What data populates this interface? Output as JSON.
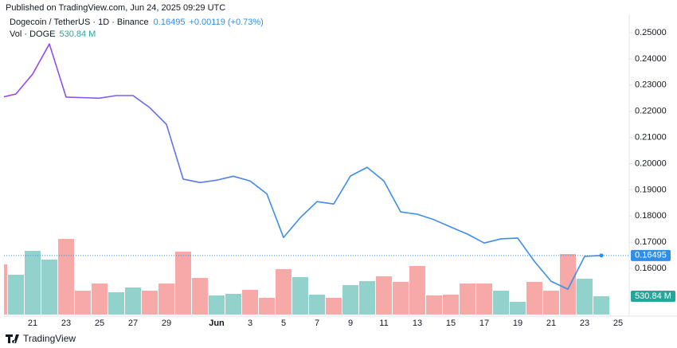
{
  "publisher": "Published on TradingView.com, Jun 24, 2025 09:29 UTC",
  "footer": "TradingView",
  "chart_data": {
    "type": "line",
    "title": "Dogecoin / TetherUS · 1D · Binance",
    "change": "+0.00119 (+0.73%)",
    "volume_title": "Vol · DOGE",
    "categories": [
      null,
      null,
      "21",
      null,
      "23",
      null,
      "25",
      null,
      "27",
      null,
      "29",
      null,
      null,
      "Jun",
      null,
      "3",
      null,
      "5",
      null,
      "7",
      null,
      "9",
      null,
      "11",
      null,
      "13",
      null,
      "15",
      null,
      "17",
      null,
      "19",
      null,
      "21",
      null,
      "23",
      null,
      "25"
    ],
    "ylim": [
      0.1424,
      0.2564
    ],
    "yticks": [
      {
        "value": 0.16,
        "label": "0.16000"
      },
      {
        "value": 0.17,
        "label": "0.17000"
      },
      {
        "value": 0.18,
        "label": "0.18000"
      },
      {
        "value": 0.19,
        "label": "0.19000"
      },
      {
        "value": 0.2,
        "label": "0.20000"
      },
      {
        "value": 0.21,
        "label": "0.21000"
      },
      {
        "value": 0.22,
        "label": "0.22000"
      },
      {
        "value": 0.23,
        "label": "0.23000"
      },
      {
        "value": 0.24,
        "label": "0.24000"
      },
      {
        "value": 0.25,
        "label": "0.25000"
      }
    ],
    "y2lim": [
      0,
      8655
    ],
    "grid": false,
    "series": [
      {
        "type": "line",
        "color_start": "#a23ee6",
        "color_end": "#3d8ee8",
        "last_color": "#2f8fe8",
        "values": [
          0.2251,
          0.2266,
          0.2342,
          0.2457,
          0.2254,
          0.2252,
          0.225,
          0.226,
          0.226,
          0.2214,
          0.215,
          0.1941,
          0.1928,
          0.1937,
          0.1952,
          0.1934,
          0.1885,
          0.1718,
          0.1794,
          0.1855,
          0.1846,
          0.1953,
          0.1986,
          0.1934,
          0.1816,
          0.1807,
          0.1786,
          0.1758,
          0.1731,
          0.1697,
          0.1713,
          0.1716,
          0.1627,
          0.1551,
          0.1521,
          0.1646,
          0.16495,
          null
        ]
      },
      {
        "type": "bar",
        "axis": "y2",
        "last_color": "#26a69a",
        "values": [
          1454,
          1154,
          1846,
          1593,
          2193,
          692,
          900,
          646,
          785,
          692,
          900,
          1823,
          1062,
          554,
          600,
          715,
          485,
          1316,
          1085,
          577,
          485,
          854,
          969,
          1108,
          946,
          1408,
          554,
          577,
          900,
          900,
          692,
          369,
          946,
          692,
          1754,
          1039,
          530.84,
          null
        ],
        "value_labels": [
          null,
          null,
          null,
          null,
          null,
          null,
          null,
          null,
          null,
          null,
          null,
          null,
          null,
          null,
          null,
          null,
          null,
          null,
          null,
          null,
          null,
          null,
          null,
          null,
          null,
          null,
          null,
          null,
          null,
          null,
          null,
          null,
          null,
          null,
          null,
          null,
          "530.84 M",
          null
        ],
        "colors": [
          "#f7a9a7",
          "#92d2cc",
          "#92d2cc",
          "#92d2cc",
          "#f7a9a7",
          "#f7a9a7",
          "#f7a9a7",
          "#92d2cc",
          "#92d2cc",
          "#f7a9a7",
          "#f7a9a7",
          "#f7a9a7",
          "#f7a9a7",
          "#92d2cc",
          "#92d2cc",
          "#f7a9a7",
          "#f7a9a7",
          "#f7a9a7",
          "#92d2cc",
          "#92d2cc",
          "#f7a9a7",
          "#92d2cc",
          "#92d2cc",
          "#f7a9a7",
          "#f7a9a7",
          "#f7a9a7",
          "#f7a9a7",
          "#f7a9a7",
          "#f7a9a7",
          "#f7a9a7",
          "#92d2cc",
          "#92d2cc",
          "#f7a9a7",
          "#f7a9a7",
          "#f7a9a7",
          "#92d2cc",
          "#92d2cc",
          null
        ]
      }
    ]
  }
}
